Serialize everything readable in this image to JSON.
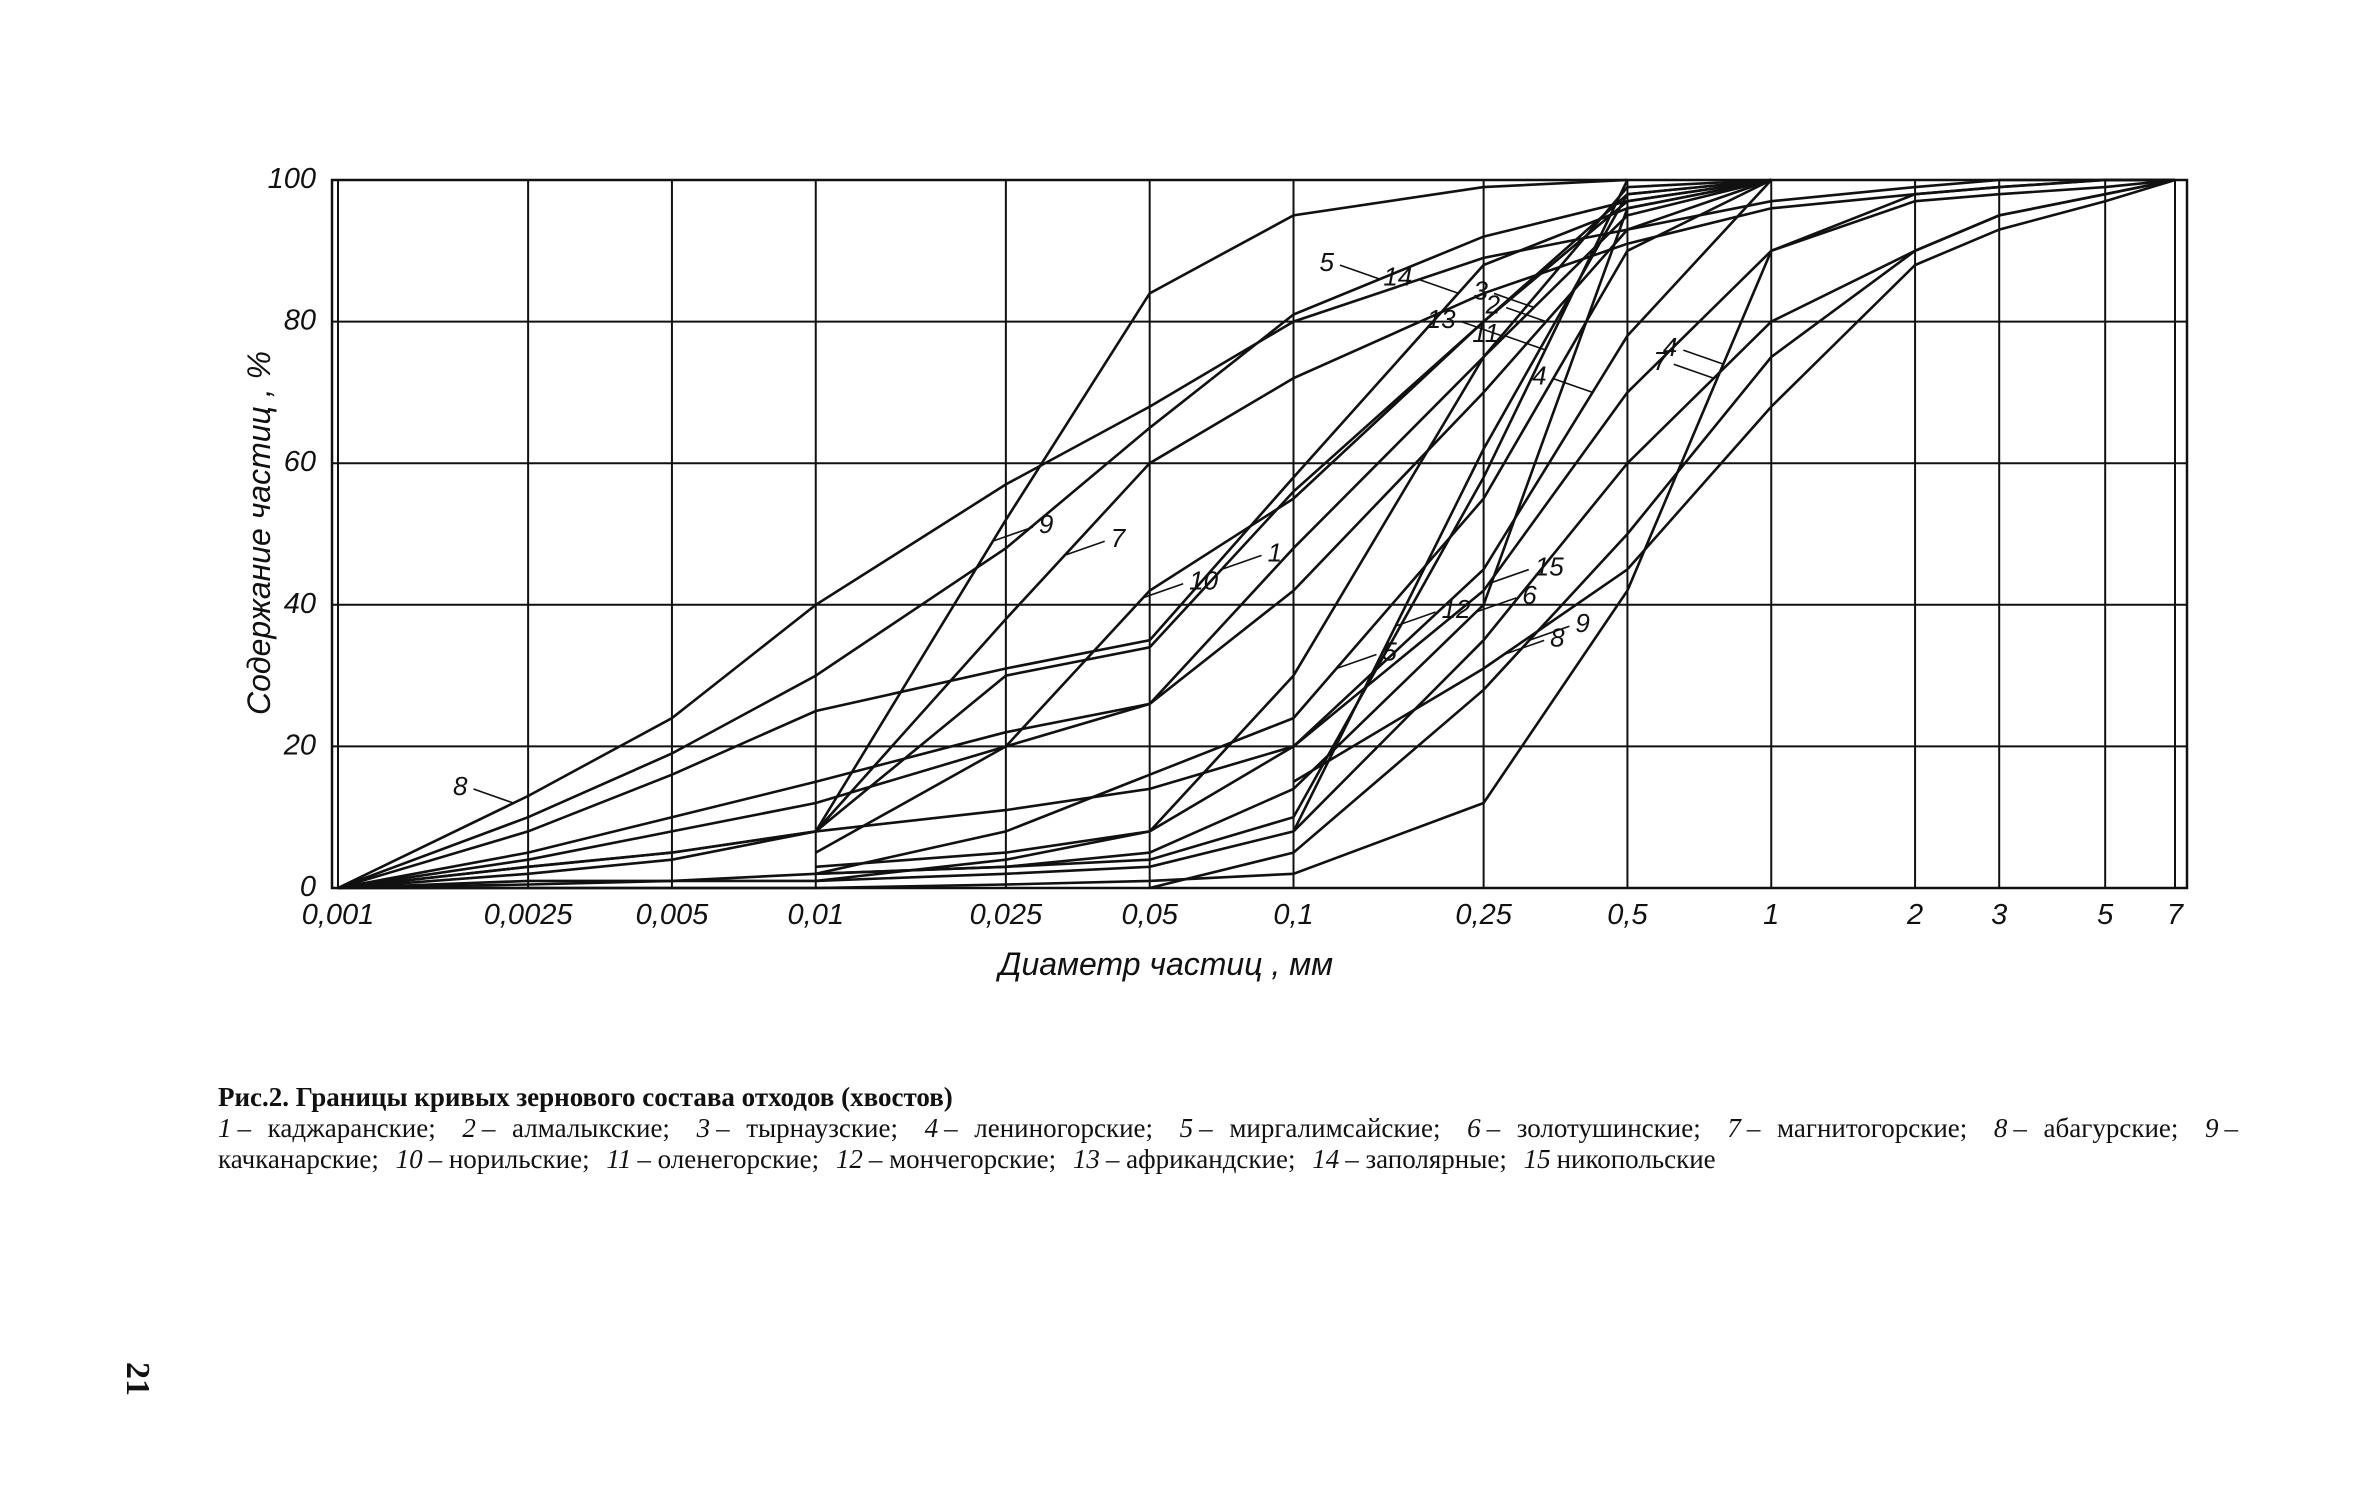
{
  "chart_data": {
    "type": "line",
    "x_label": "Диаметр частиц , мм",
    "y_label": "Содержание частиц , %",
    "log_x": true,
    "grid": true,
    "color": "#111111",
    "xlim": [
      0.001,
      7
    ],
    "ylim": [
      0,
      100
    ],
    "xticks": [
      {
        "value": 0.001,
        "label": "0,001"
      },
      {
        "value": 0.0025,
        "label": "0,0025"
      },
      {
        "value": 0.005,
        "label": "0,005"
      },
      {
        "value": 0.01,
        "label": "0,01"
      },
      {
        "value": 0.025,
        "label": "0,025"
      },
      {
        "value": 0.05,
        "label": "0,05"
      },
      {
        "value": 0.1,
        "label": "0,1"
      },
      {
        "value": 0.25,
        "label": "0,25"
      },
      {
        "value": 0.5,
        "label": "0,5"
      },
      1,
      2,
      3,
      5,
      7
    ],
    "yticks": [
      0,
      20,
      40,
      60,
      80,
      100
    ],
    "x": [
      0.001,
      0.0025,
      0.005,
      0.01,
      0.025,
      0.05,
      0.1,
      0.25,
      0.5,
      1,
      2,
      3,
      5,
      7
    ],
    "series": [
      {
        "name": "8",
        "values": [
          0,
          13,
          24,
          40,
          57,
          68,
          80,
          89,
          93,
          97,
          99,
          100,
          100,
          100
        ]
      },
      {
        "name": "9",
        "values": [
          null,
          null,
          null,
          8,
          52,
          84,
          95,
          99,
          100,
          null,
          null,
          null,
          null,
          null
        ]
      },
      {
        "name": "5",
        "values": [
          0,
          10,
          19,
          30,
          48,
          65,
          81,
          92,
          97,
          100,
          null,
          null,
          null,
          null
        ]
      },
      {
        "name": "7",
        "values": [
          0,
          2,
          4,
          8,
          38,
          60,
          72,
          84,
          91,
          96,
          98,
          99,
          100,
          100
        ]
      },
      {
        "name": "14",
        "values": [
          0,
          8,
          16,
          25,
          31,
          35,
          58,
          88,
          96,
          100,
          null,
          null,
          null,
          null
        ]
      },
      {
        "name": "1",
        "values": [
          0,
          3,
          5,
          8,
          30,
          34,
          56,
          80,
          97,
          100,
          null,
          null,
          null,
          null
        ]
      },
      {
        "name": "3",
        "values": [
          0,
          5,
          10,
          15,
          22,
          26,
          48,
          75,
          95,
          100,
          null,
          null,
          null,
          null
        ]
      },
      {
        "name": "15",
        "values": [
          0,
          3,
          5,
          8,
          11,
          14,
          20,
          42,
          70,
          90,
          97,
          98,
          99,
          100
        ]
      },
      {
        "name": "2",
        "values": [
          0,
          4,
          8,
          12,
          20,
          26,
          42,
          70,
          93,
          100,
          null,
          null,
          null,
          null
        ]
      },
      {
        "name": "10",
        "values": [
          null,
          null,
          null,
          5,
          20,
          42,
          55,
          80,
          98,
          100,
          null,
          null,
          null,
          null
        ]
      },
      {
        "name": "13",
        "values": [
          null,
          null,
          null,
          3,
          5,
          8,
          30,
          75,
          99,
          100,
          null,
          null,
          null,
          null
        ]
      },
      {
        "name": "6",
        "values": [
          null,
          null,
          null,
          2,
          3,
          5,
          14,
          40,
          96,
          100,
          null,
          null,
          null,
          null
        ]
      },
      {
        "name": "11",
        "values": [
          null,
          null,
          null,
          2,
          3,
          4,
          10,
          58,
          100,
          null,
          null,
          null,
          null,
          null
        ]
      },
      {
        "name": "12",
        "values": [
          null,
          null,
          null,
          1,
          2,
          3,
          8,
          62,
          98,
          100,
          null,
          null,
          null,
          null
        ]
      },
      {
        "name": "4",
        "values": [
          0,
          0,
          0,
          0,
          0.5,
          1,
          2,
          12,
          42,
          90,
          98,
          99,
          100,
          100
        ]
      },
      {
        "name": "9",
        "values": [
          null,
          null,
          null,
          null,
          null,
          0,
          5,
          28,
          50,
          75,
          90,
          95,
          98,
          100
        ]
      },
      {
        "name": "7",
        "values": [
          null,
          null,
          null,
          null,
          null,
          null,
          8,
          35,
          60,
          80,
          90,
          95,
          98,
          100
        ]
      },
      {
        "name": "8",
        "values": [
          null,
          null,
          null,
          null,
          null,
          null,
          15,
          31,
          45,
          68,
          88,
          93,
          97,
          100
        ]
      },
      {
        "name": "4",
        "values": [
          0,
          0.5,
          1,
          1,
          4,
          8,
          20,
          45,
          78,
          100,
          null,
          null,
          null,
          null
        ]
      },
      {
        "name": "5",
        "values": [
          0,
          1,
          1,
          2,
          8,
          16,
          24,
          55,
          90,
          100,
          null,
          null,
          null,
          null
        ]
      }
    ]
  },
  "caption": {
    "title": "Рис.2. Границы кривых зернового состава отходов (хвостов)",
    "items": [
      {
        "num": "1",
        "text": "– каджаранские;"
      },
      {
        "num": "2",
        "text": "– алмалыкские;"
      },
      {
        "num": "3",
        "text": "– тырнаузские;"
      },
      {
        "num": "4",
        "text": "– лениногорские;"
      },
      {
        "num": "5",
        "text": "– миргалимсайские;"
      },
      {
        "num": "6",
        "text": "– золотушинские;"
      },
      {
        "num": "7",
        "text": "– магнитогорские;"
      },
      {
        "num": "8",
        "text": "– абагурские;"
      },
      {
        "num": "9",
        "text": "– качканарские;"
      },
      {
        "num": "10",
        "text": "– норильские;"
      },
      {
        "num": "11",
        "text": "– оленегорские;"
      },
      {
        "num": "12",
        "text": "– мончегорские;"
      },
      {
        "num": "13",
        "text": "– африкандские;"
      },
      {
        "num": "14",
        "text": "– заполярные;"
      },
      {
        "num": "15",
        "text": "никопольские"
      }
    ]
  },
  "page_number": "21"
}
